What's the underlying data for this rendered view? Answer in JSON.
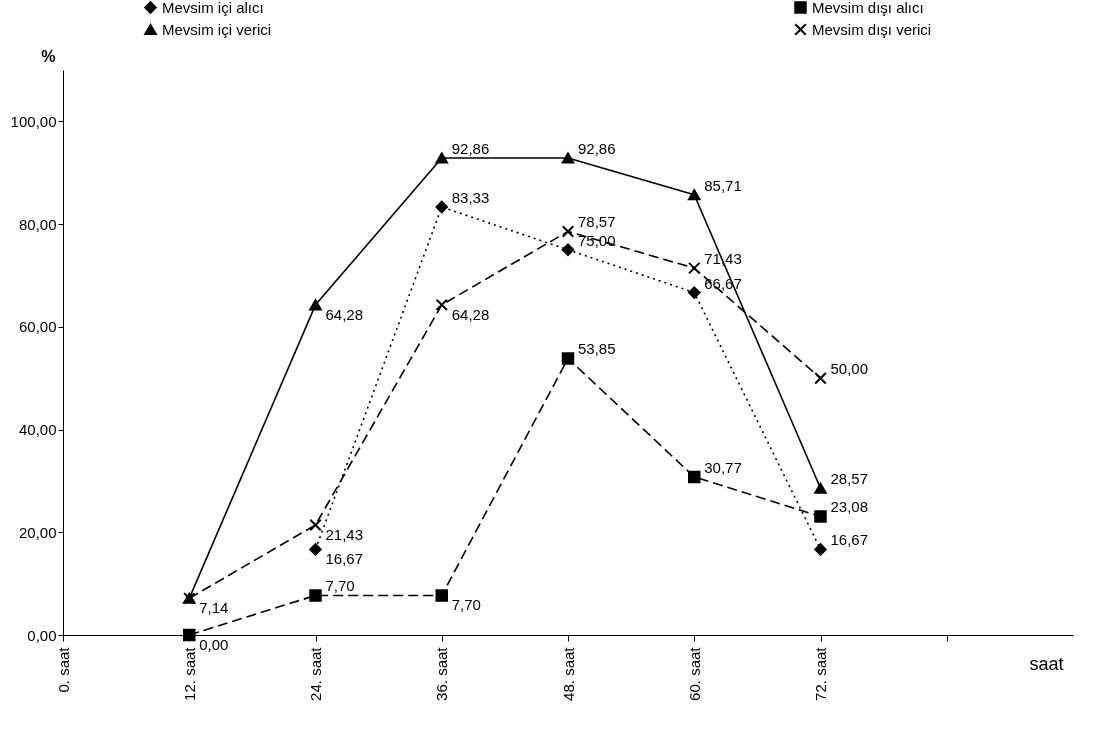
{
  "chart_data": {
    "type": "line",
    "xlabel": "saat",
    "ylabel": "%",
    "categories": [
      "0. saat",
      "12. saat",
      "24. saat",
      "36. saat",
      "48. saat",
      "60. saat",
      "72. saat",
      null
    ],
    "ylim": [
      0,
      110
    ],
    "yticks": [
      {
        "value": 0,
        "label": "0,00"
      },
      {
        "value": 20,
        "label": "20,00"
      },
      {
        "value": 40,
        "label": "40,00"
      },
      {
        "value": 60,
        "label": "60,00"
      },
      {
        "value": 80,
        "label": "80,00"
      },
      {
        "value": 100,
        "label": "100,00"
      }
    ],
    "grid": false,
    "legend": "top",
    "series": [
      {
        "name": "Mevsim içi alıcı",
        "color": "#000000",
        "marker": "diamond",
        "line_style": "dotted",
        "values": [
          null,
          null,
          16.67,
          83.33,
          75.0,
          66.67,
          16.67,
          null
        ],
        "value_labels": [
          null,
          null,
          "16,67",
          "83,33",
          "75,00",
          "66,67",
          "16,67",
          null
        ]
      },
      {
        "name": "Mevsim dışı alıcı",
        "color": "#000000",
        "marker": "square",
        "line_style": "dashed",
        "values": [
          null,
          0.0,
          7.7,
          7.7,
          53.85,
          30.77,
          23.08,
          null
        ],
        "value_labels": [
          null,
          "0,00",
          "7,70",
          "7,70",
          "53,85",
          "30,77",
          "23,08",
          null
        ]
      },
      {
        "name": "Mevsim içi verici",
        "color": "#000000",
        "marker": "triangle",
        "line_style": "solid",
        "values": [
          null,
          7.14,
          64.28,
          92.86,
          92.86,
          85.71,
          28.57,
          null
        ],
        "value_labels": [
          null,
          "7,14",
          "64,28",
          "92,86",
          "92,86",
          "85,71",
          "28,57",
          null
        ]
      },
      {
        "name": "Mevsim dışı verici",
        "color": "#000000",
        "marker": "cross",
        "line_style": "dashed",
        "values": [
          null,
          7.14,
          21.43,
          64.28,
          78.57,
          71.43,
          50.0,
          null
        ],
        "value_labels": [
          null,
          null,
          "21,43",
          "64,28",
          "78,57",
          "71,43",
          "50,00",
          null
        ]
      }
    ]
  }
}
